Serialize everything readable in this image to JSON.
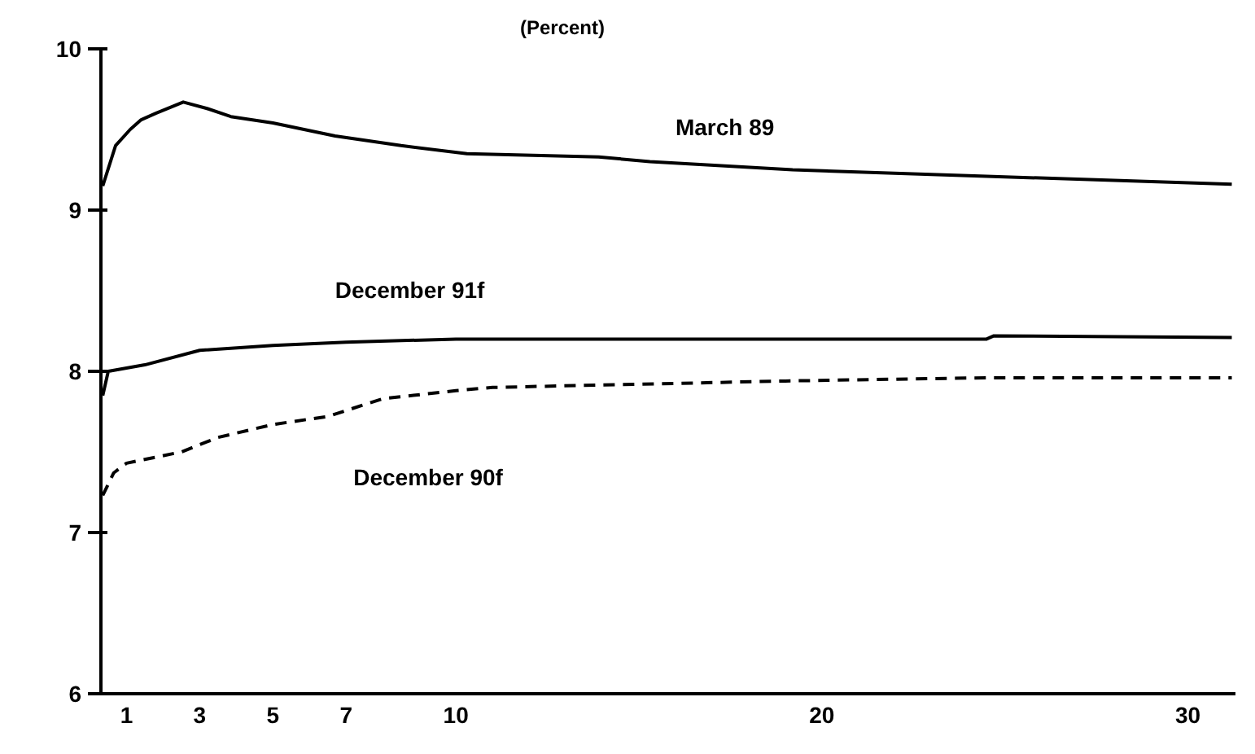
{
  "chart_data": {
    "type": "line",
    "subtitle": "(Percent)",
    "xlim": [
      0.3,
      31.3
    ],
    "xticks": [
      1,
      3,
      5,
      7,
      10,
      20,
      30
    ],
    "ylim": [
      6,
      10
    ],
    "yticks": [
      6,
      7,
      8,
      9,
      10
    ],
    "grid": false,
    "legend": false,
    "marker": "none",
    "series": [
      {
        "name": "March 89",
        "color": "#000000",
        "line_style": "solid",
        "x": [
          0.35,
          0.7,
          1.1,
          1.4,
          1.8,
          2.55,
          3.2,
          3.85,
          5,
          6.7,
          8.5,
          10.3,
          13.9,
          15.3,
          19.2,
          24.5,
          31.2
        ],
        "values": [
          9.15,
          9.4,
          9.5,
          9.56,
          9.6,
          9.67,
          9.63,
          9.58,
          9.54,
          9.46,
          9.4,
          9.35,
          9.33,
          9.3,
          9.25,
          9.21,
          9.16
        ]
      },
      {
        "name": "December 91f",
        "color": "#000000",
        "line_style": "solid",
        "x": [
          0.35,
          0.5,
          1,
          1.5,
          3,
          5,
          7,
          10,
          20,
          24.5,
          24.7,
          31.2
        ],
        "values": [
          7.85,
          8.0,
          8.02,
          8.04,
          8.13,
          8.16,
          8.18,
          8.2,
          8.2,
          8.2,
          8.22,
          8.21
        ]
      },
      {
        "name": "December 90f",
        "color": "#000000",
        "line_style": "dashed",
        "x": [
          0.35,
          0.65,
          1,
          2.5,
          3.5,
          5,
          6.5,
          8,
          10,
          11,
          15,
          19,
          24.5,
          31.2
        ],
        "values": [
          7.23,
          7.37,
          7.43,
          7.5,
          7.59,
          7.67,
          7.72,
          7.83,
          7.88,
          7.9,
          7.92,
          7.94,
          7.96,
          7.96
        ]
      }
    ]
  }
}
